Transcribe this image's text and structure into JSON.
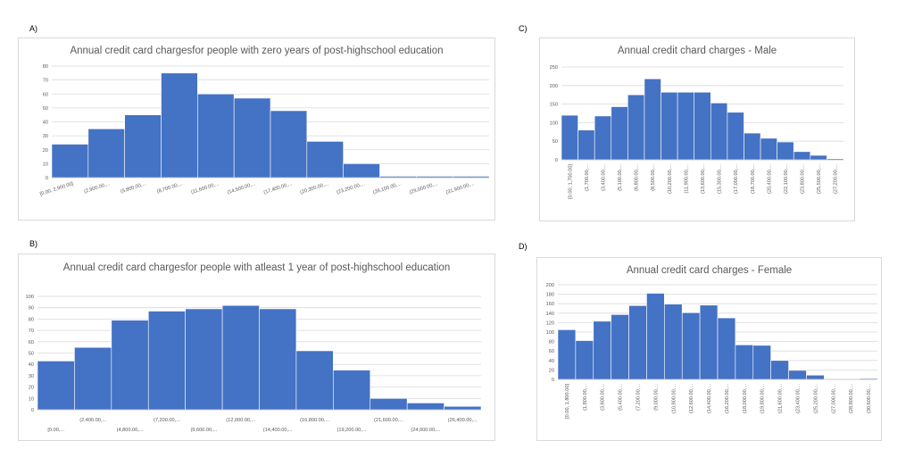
{
  "chart_data": [
    {
      "id": "A",
      "type": "bar",
      "title": "Annual credit card chargesfor people with zero years of post-highschool education",
      "ylim": [
        0,
        80
      ],
      "yticks": [
        0,
        10,
        20,
        30,
        40,
        50,
        60,
        70,
        80
      ],
      "categories": [
        "[0.00, 2,900.00]",
        "(2,900.00,...",
        "(5,800.00,...",
        "(8,700.00,...",
        "(11,600.00,...",
        "(14,500.00,...",
        "(17,400.00,...",
        "(20,300.00,...",
        "(23,200.00,...",
        "(26,100.00,...",
        "(29,000.00,...",
        "(31,900.00,..."
      ],
      "values": [
        24,
        35,
        45,
        75,
        60,
        57,
        48,
        26,
        10,
        1,
        1,
        1
      ]
    },
    {
      "id": "B",
      "type": "bar",
      "title": "Annual credit card chargesfor people with atleast 1 year of post-highschool education",
      "ylim": [
        0,
        100
      ],
      "yticks": [
        0,
        10,
        20,
        30,
        40,
        50,
        60,
        70,
        80,
        90,
        100
      ],
      "categories": [
        "[0.00,...",
        "(2,400.00,...",
        "(4,800.00,...",
        "(7,200.00,...",
        "(9,600.00,...",
        "(12,000.00,...",
        "(14,400.00,...",
        "(16,800.00,...",
        "(19,200.00,...",
        "(21,600.00,...",
        "(24,000.00,...",
        "(26,400.00,..."
      ],
      "values": [
        43,
        55,
        79,
        87,
        89,
        92,
        89,
        52,
        35,
        10,
        6,
        3
      ]
    },
    {
      "id": "C",
      "type": "bar",
      "title": "Annual credit chard charges - Male",
      "ylim": [
        0,
        250
      ],
      "yticks": [
        0,
        50,
        100,
        150,
        200,
        250
      ],
      "categories": [
        "[0.00, 1,700.00]",
        "(1,700.00,...",
        "(3,400.00,...",
        "(5,100.00,...",
        "(6,800.00,...",
        "(8,500.00,...",
        "(10,200.00,...",
        "(11,900.00,...",
        "(13,600.00,...",
        "(15,300.00,...",
        "(17,000.00,...",
        "(18,700.00,...",
        "(20,400.00,...",
        "(22,100.00,...",
        "(23,800.00,...",
        "(25,500.00,...",
        "(27,200.00,..."
      ],
      "values": [
        120,
        80,
        118,
        143,
        175,
        218,
        182,
        182,
        182,
        153,
        128,
        72,
        58,
        48,
        22,
        12,
        3
      ]
    },
    {
      "id": "D",
      "type": "bar",
      "title": "Annual credit card charges - Female",
      "ylim": [
        0,
        200
      ],
      "yticks": [
        0,
        20,
        40,
        60,
        80,
        100,
        120,
        140,
        160,
        180,
        200
      ],
      "categories": [
        "[0.00, 1,800.00]",
        "(1,800.00,...",
        "(3,600.00,...",
        "(5,400.00,...",
        "(7,200.00,...",
        "(9,000.00,...",
        "(10,800.00,...",
        "(12,600.00,...",
        "(14,400.00,...",
        "(16,200.00,...",
        "(18,000.00,...",
        "(19,800.00,...",
        "(21,600.00,...",
        "(23,400.00,...",
        "(25,200.00,...",
        "(27,000.00,...",
        "(28,800.00,...",
        "(30,600.00,..."
      ],
      "values": [
        105,
        82,
        123,
        137,
        156,
        182,
        159,
        141,
        157,
        130,
        73,
        72,
        40,
        19,
        9,
        0,
        0,
        2
      ]
    }
  ],
  "colors": {
    "bar": "#4472C4",
    "grid": "#d9d9d9",
    "text": "#595959"
  },
  "panels": {
    "A": "A)",
    "B": "B)",
    "C": "C)",
    "D": "D)"
  }
}
